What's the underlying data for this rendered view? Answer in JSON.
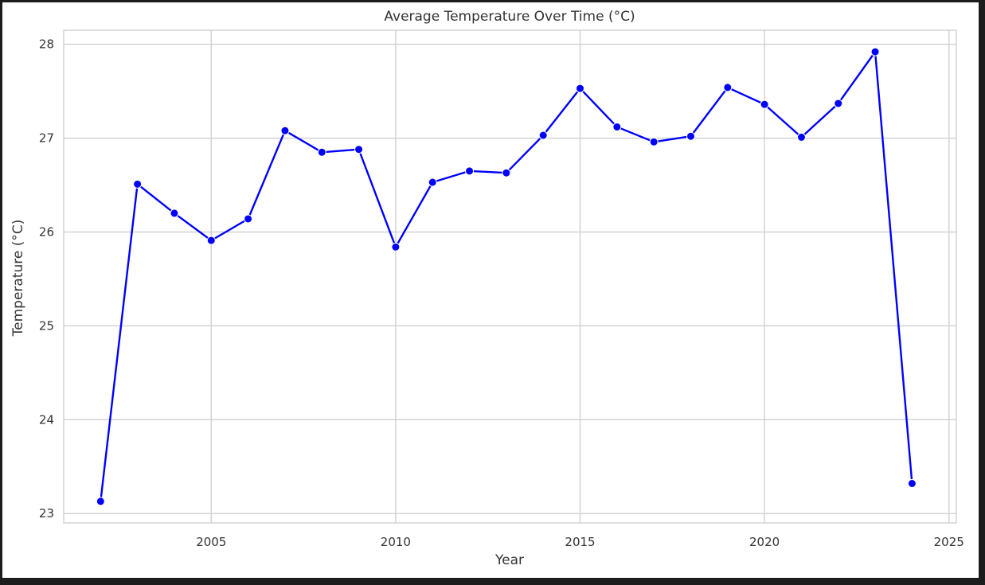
{
  "chart_data": {
    "type": "line",
    "title": "Average Temperature Over Time (°C)",
    "xlabel": "Year",
    "ylabel": "Temperature (°C)",
    "xlim": [
      2001,
      2025.2
    ],
    "ylim": [
      22.9,
      28.15
    ],
    "x_ticks": [
      2005,
      2010,
      2015,
      2020,
      2025
    ],
    "y_ticks": [
      23,
      24,
      25,
      26,
      27,
      28
    ],
    "grid": true,
    "line_color": "#0000ff",
    "marker_color": "#0000ff",
    "series": [
      {
        "x": [
          2002,
          2003,
          2004,
          2005,
          2006,
          2007,
          2008,
          2009,
          2010,
          2011,
          2012,
          2013,
          2014,
          2015,
          2016,
          2017,
          2018,
          2019,
          2020,
          2021,
          2022,
          2023,
          2024
        ],
        "values": [
          23.13,
          26.51,
          26.2,
          25.91,
          26.14,
          27.08,
          26.85,
          26.88,
          25.84,
          26.53,
          26.65,
          26.63,
          27.03,
          27.53,
          27.12,
          26.96,
          27.02,
          27.54,
          27.36,
          27.01,
          27.37,
          27.92,
          23.32
        ]
      }
    ]
  }
}
